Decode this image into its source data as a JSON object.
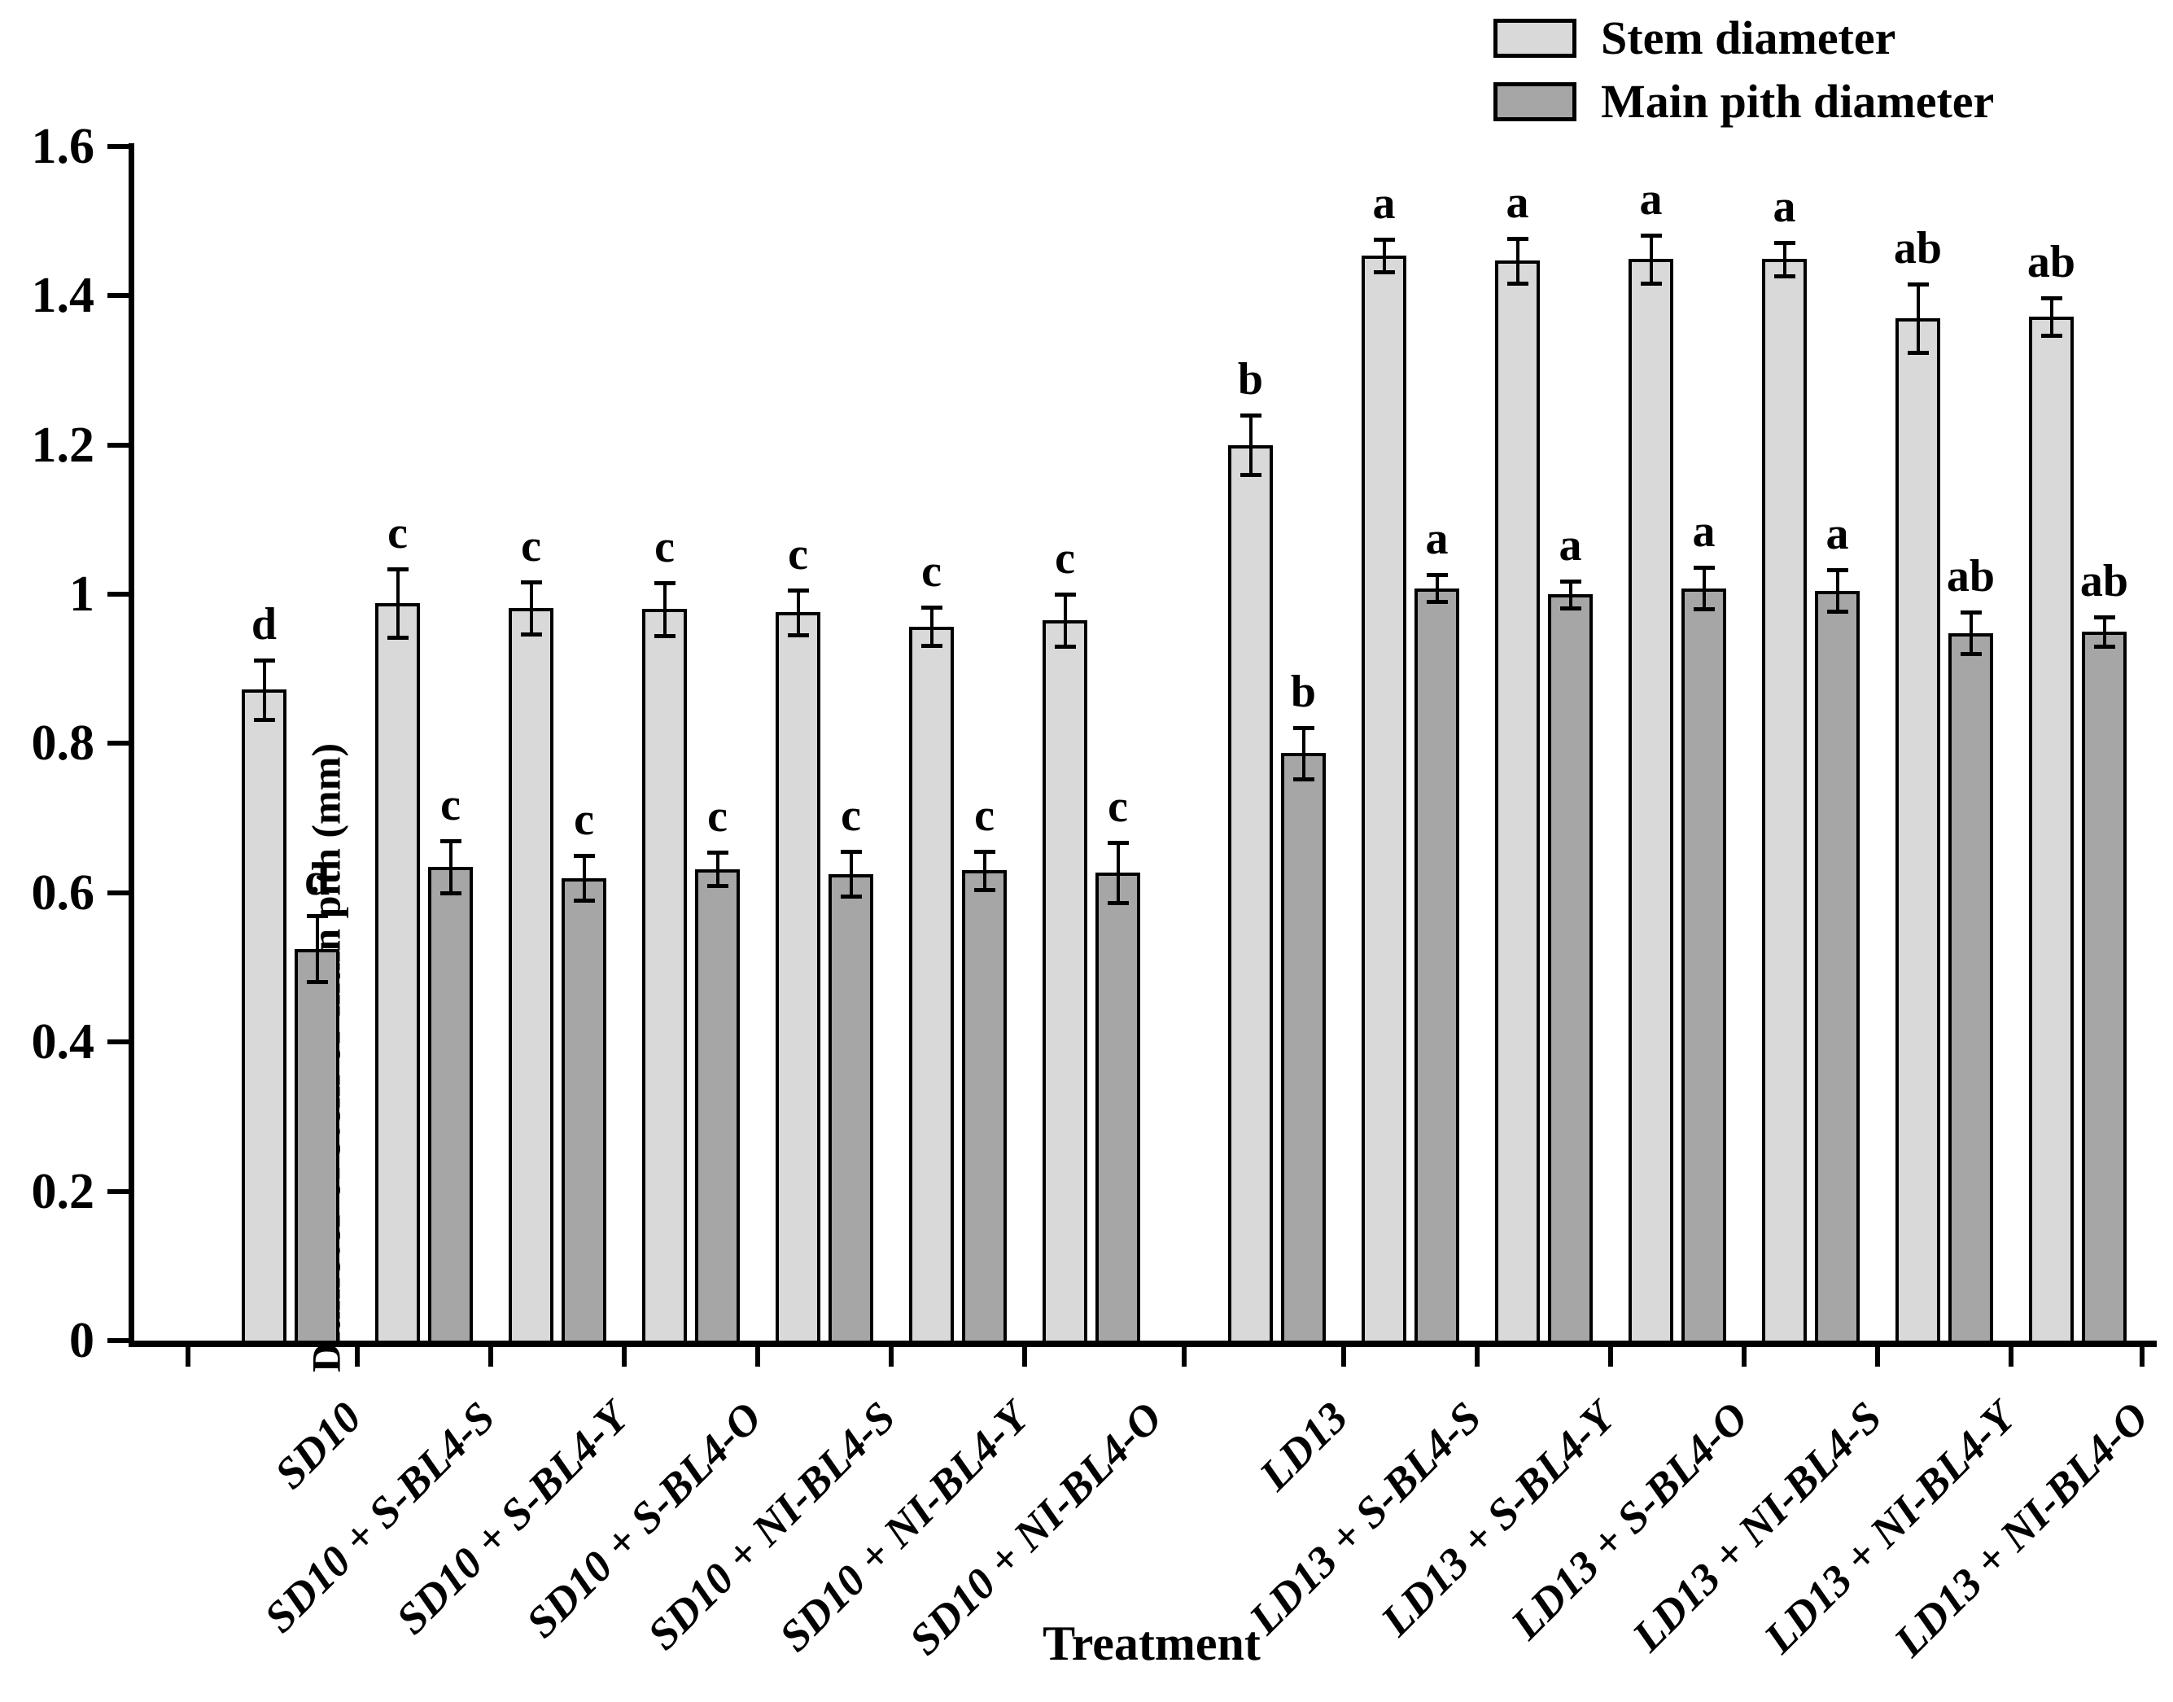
{
  "figure": {
    "background": "#ffffff",
    "axis_color": "#000000"
  },
  "legend": {
    "items": [
      {
        "label": "Stem diameter",
        "color": "#d9d9d9"
      },
      {
        "label": "Main pith diameter",
        "color": "#a6a6a6"
      }
    ]
  },
  "axes": {
    "y_title": "Diameter of stem or main pith (mm)",
    "x_title": "Treatment",
    "y_tick_labels": [
      "0",
      "0.2",
      "0.4",
      "0.6",
      "0.8",
      "1",
      "1.2",
      "1.4",
      "1.6"
    ]
  },
  "chart_data": {
    "type": "bar",
    "title": "",
    "xlabel": "Treatment",
    "ylabel": "Diameter of stem or main pith (mm)",
    "ylim": [
      0,
      1.6
    ],
    "y_tick_step": 0.2,
    "grid": false,
    "legend_position": "top-right",
    "error_bars": true,
    "significance_letters": true,
    "block_gap_after_index": 6,
    "categories": [
      "SD10",
      "SD10 + S-BL4-S",
      "SD10 + S-BL4-Y",
      "SD10 + S-BL4-O",
      "SD10 + NI-BL4-S",
      "SD10 + NI-BL4-Y",
      "SD10 + NI-BL4-O",
      "LD13",
      "LD13 + S-BL4-S",
      "LD13 + S-BL4-Y",
      "LD13 + S-BL4-O",
      "LD13 + NI-BL4-S",
      "LD13 + NI-BL4-Y",
      "LD13 + NI-BL4-O"
    ],
    "series": [
      {
        "name": "Stem diameter",
        "color": "#d9d9d9",
        "values": [
          0.872,
          0.988,
          0.982,
          0.98,
          0.976,
          0.957,
          0.965,
          1.2,
          1.454,
          1.447,
          1.449,
          1.449,
          1.37,
          1.372
        ],
        "errors": [
          0.04,
          0.046,
          0.035,
          0.035,
          0.03,
          0.026,
          0.035,
          0.04,
          0.022,
          0.03,
          0.032,
          0.022,
          0.046,
          0.025
        ],
        "letters": [
          "d",
          "c",
          "c",
          "c",
          "c",
          "c",
          "c",
          "b",
          "a",
          "a",
          "a",
          "a",
          "ab",
          "ab"
        ]
      },
      {
        "name": "Main pith diameter",
        "color": "#a6a6a6",
        "values": [
          0.525,
          0.635,
          0.62,
          0.632,
          0.625,
          0.63,
          0.627,
          0.787,
          1.008,
          1.0,
          1.008,
          1.005,
          0.948,
          0.95
        ],
        "errors": [
          0.044,
          0.035,
          0.03,
          0.022,
          0.03,
          0.026,
          0.04,
          0.034,
          0.018,
          0.018,
          0.028,
          0.028,
          0.028,
          0.02
        ],
        "letters": [
          "d",
          "c",
          "c",
          "c",
          "c",
          "c",
          "c",
          "b",
          "a",
          "a",
          "a",
          "a",
          "ab",
          "ab"
        ]
      }
    ]
  }
}
